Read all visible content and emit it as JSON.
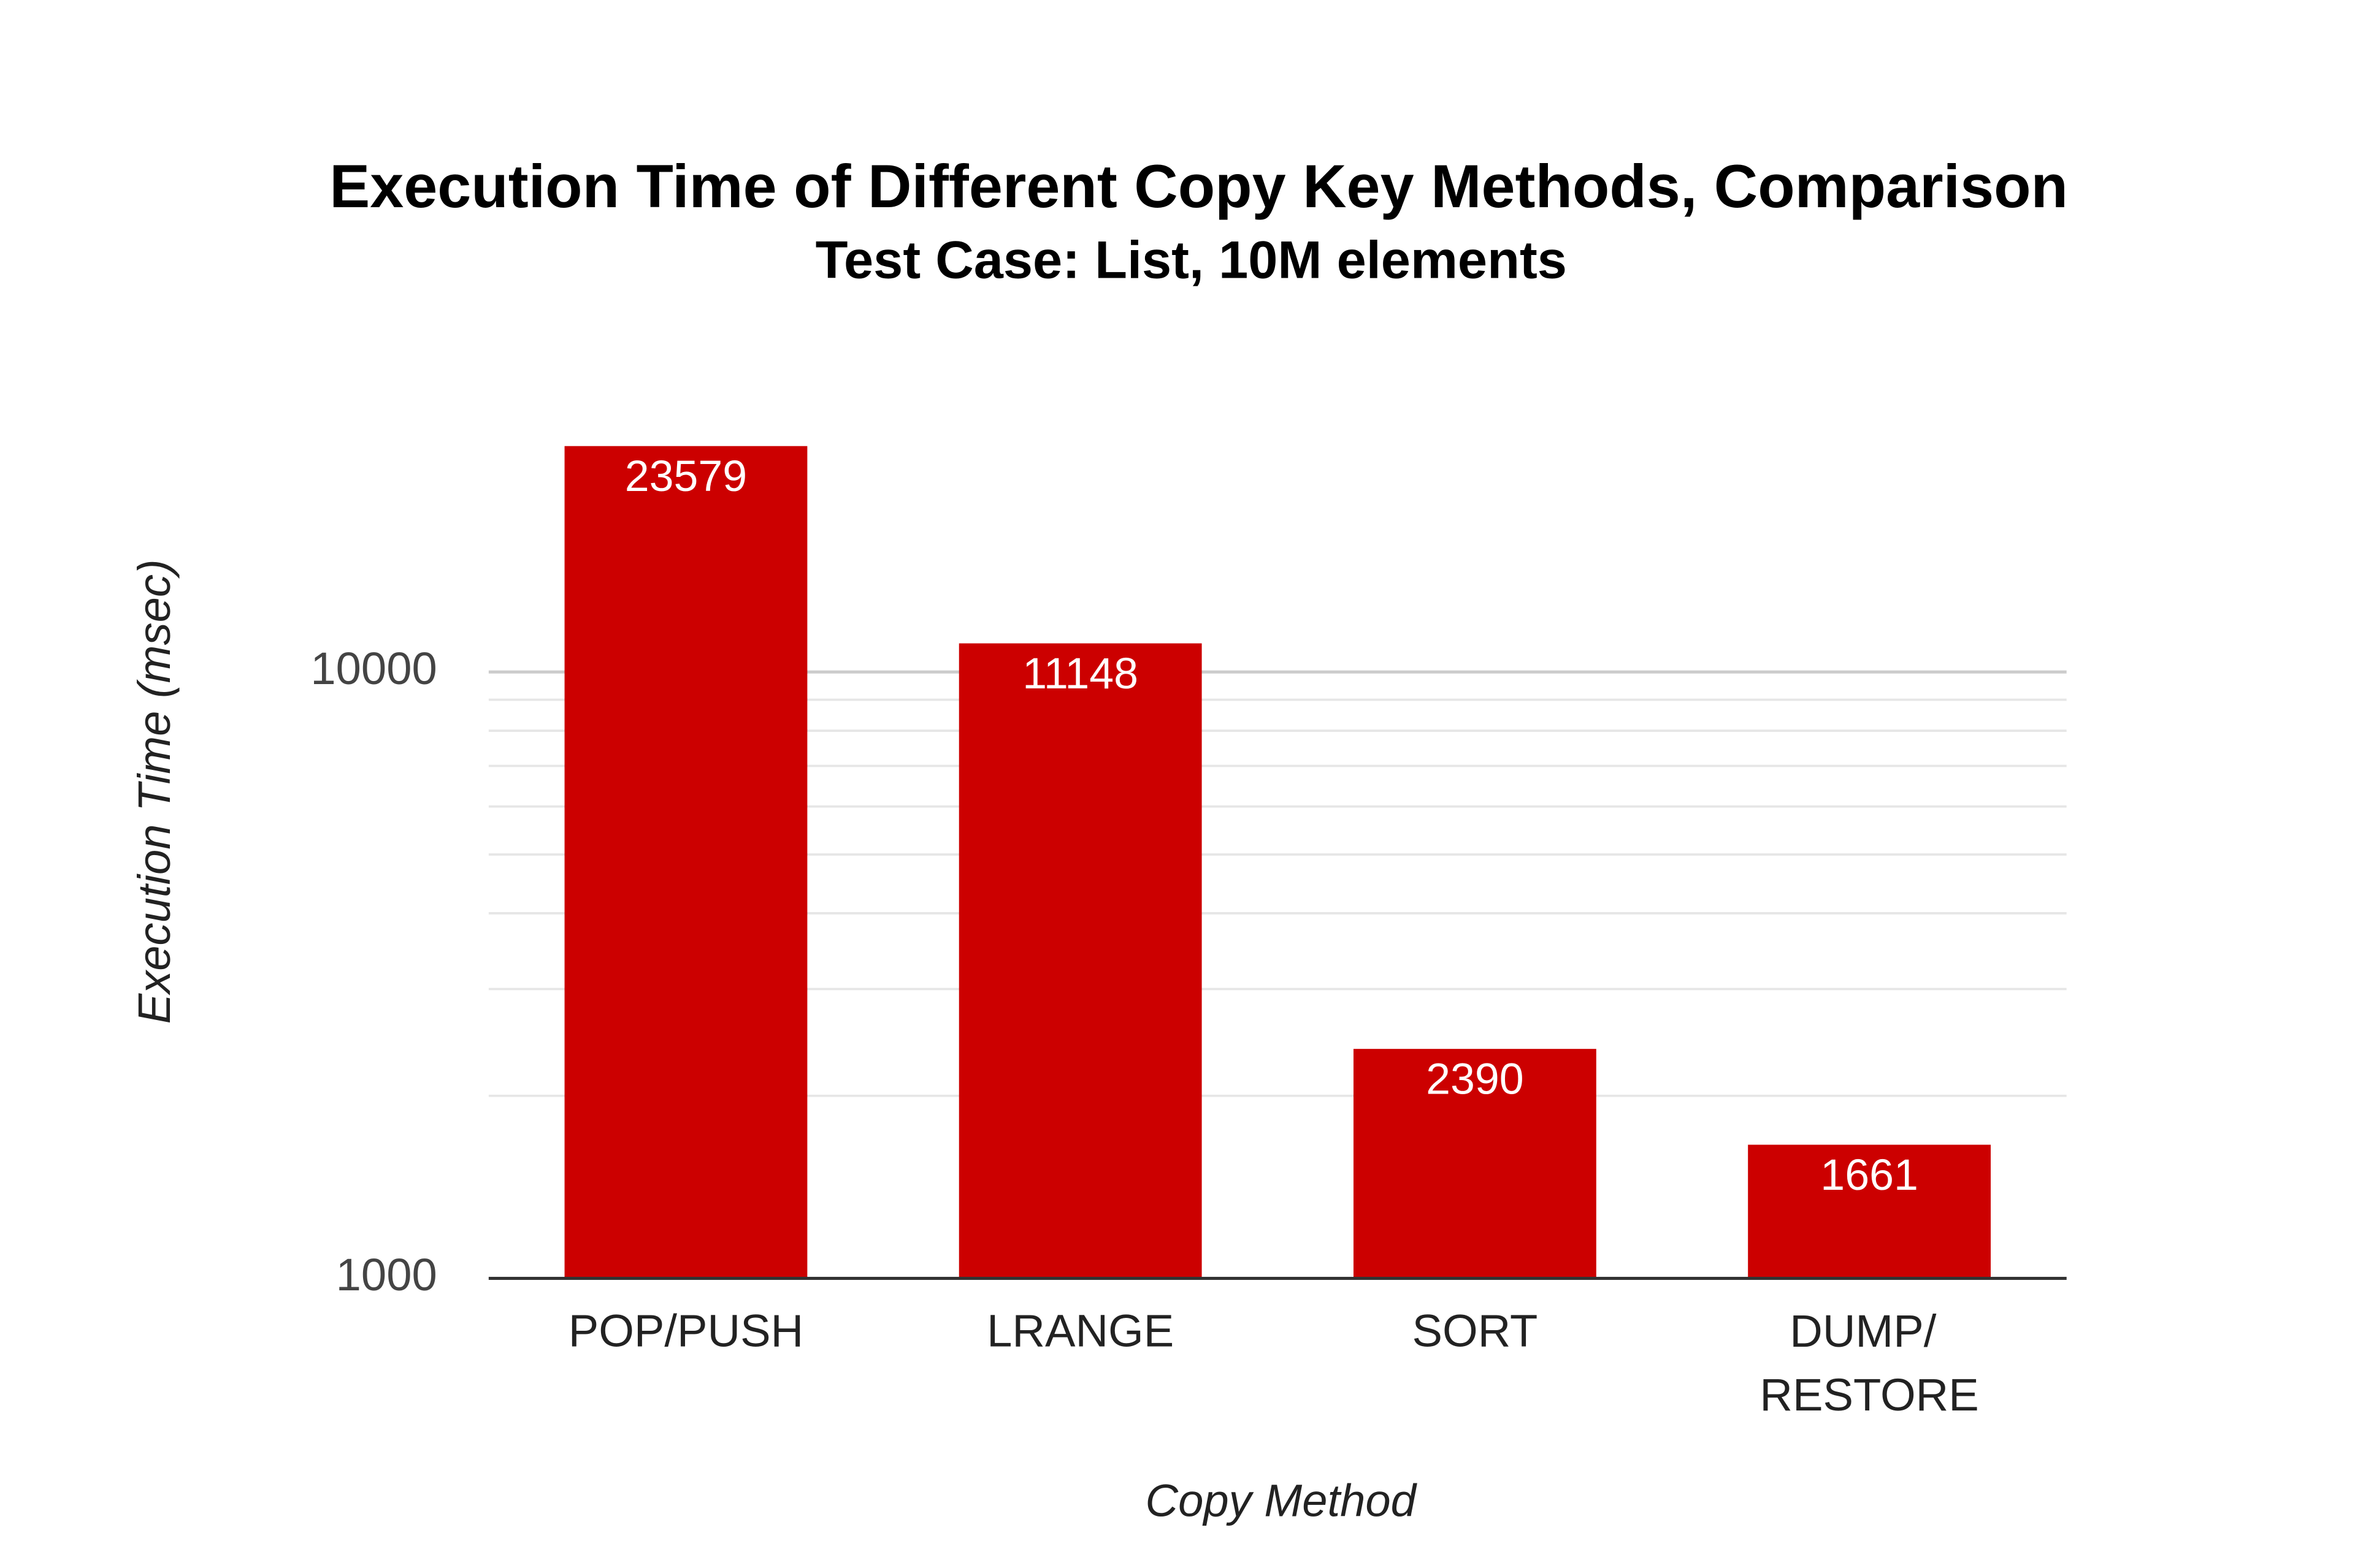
{
  "chart_data": {
    "type": "bar",
    "title": "Execution Time of Different Copy Key Methods, Comparison",
    "subtitle": "Test Case: List, 10M elements",
    "x_label": "Copy Method",
    "y_label": "Execution Time (msec)",
    "categories": [
      "POP/PUSH",
      "LRANGE",
      "SORT",
      "DUMP/ RESTORE"
    ],
    "values": [
      23579,
      11148,
      2390,
      1661
    ],
    "color": "#cc0000",
    "log_scale": true,
    "ylim": [
      1000,
      25000
    ],
    "yticks": [
      1000,
      10000
    ],
    "minor_yticks": [
      2000,
      3000,
      4000,
      5000,
      6000,
      7000,
      8000,
      9000
    ],
    "grid": true
  }
}
